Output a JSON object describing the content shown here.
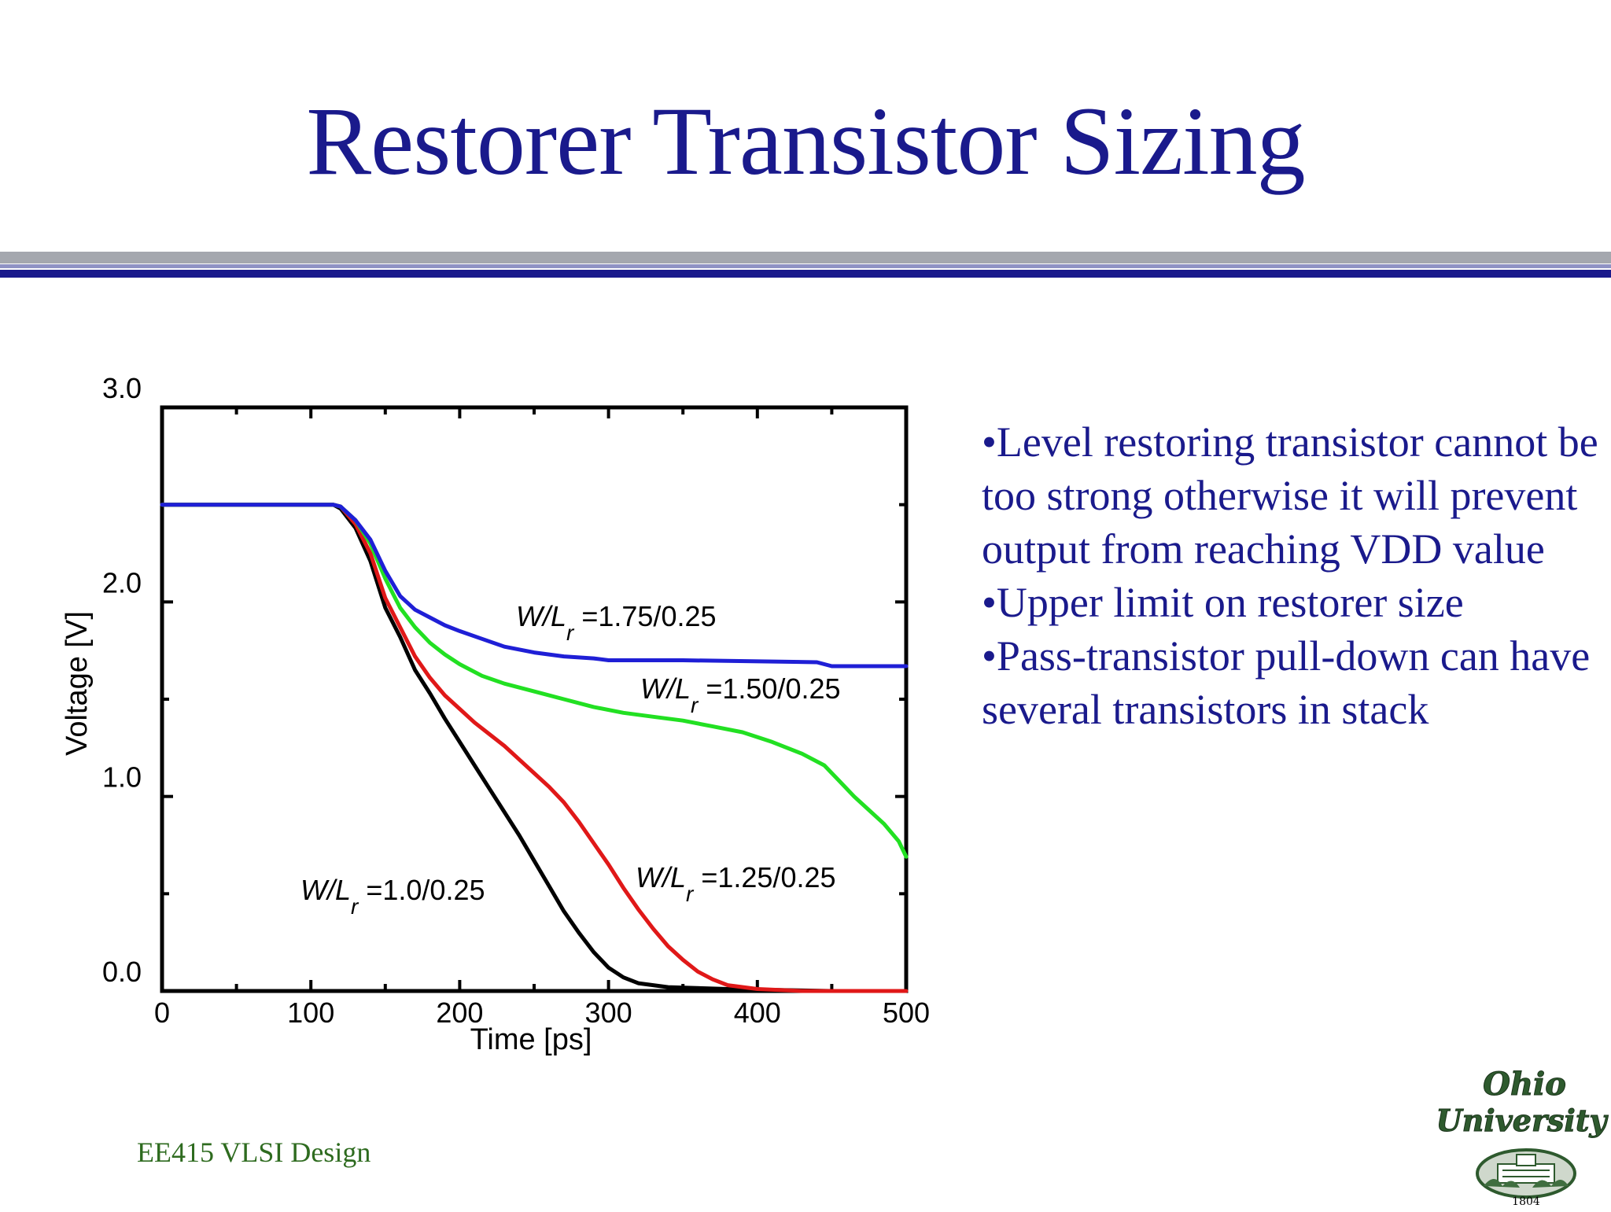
{
  "slide": {
    "title": "Restorer Transistor Sizing",
    "footer": "EE415 VLSI Design"
  },
  "bullets": [
    "•Level restoring transistor cannot be too strong otherwise it will prevent output from reaching VDD value",
    "•Upper limit on restorer size",
    "•Pass-transistor pull-down can have several transistors in stack"
  ],
  "logo": {
    "line1": "Ohio",
    "line2": "University",
    "year": "1804",
    "icon": "ohio-university-seal"
  },
  "colors": {
    "title": "#1a1a8c",
    "footer": "#2e6b1f"
  },
  "chart_data": {
    "type": "line",
    "xlabel": "Time [ps]",
    "ylabel": "Voltage  [V]",
    "xlim": [
      0,
      500
    ],
    "ylim": [
      0,
      3.0
    ],
    "x_ticks": [
      "0",
      "100",
      "200",
      "300",
      "400",
      "500"
    ],
    "y_ticks": [
      "0.0",
      "1.0",
      "2.0",
      "3.0"
    ],
    "y_tick_values": [
      0,
      1,
      2,
      3
    ],
    "grid": false,
    "series": [
      {
        "name": "W/Lr =1.75/0.25",
        "label_parts": [
          "W/L",
          "r",
          " =1.75/0.25"
        ],
        "color": "#1f1fd6",
        "points": [
          [
            0,
            2.5
          ],
          [
            115,
            2.5
          ],
          [
            120,
            2.49
          ],
          [
            130,
            2.42
          ],
          [
            140,
            2.32
          ],
          [
            150,
            2.16
          ],
          [
            160,
            2.03
          ],
          [
            170,
            1.96
          ],
          [
            180,
            1.92
          ],
          [
            190,
            1.88
          ],
          [
            200,
            1.85
          ],
          [
            215,
            1.81
          ],
          [
            230,
            1.77
          ],
          [
            250,
            1.74
          ],
          [
            270,
            1.72
          ],
          [
            290,
            1.71
          ],
          [
            300,
            1.7
          ],
          [
            350,
            1.7
          ],
          [
            440,
            1.69
          ],
          [
            450,
            1.67
          ],
          [
            500,
            1.67
          ]
        ]
      },
      {
        "name": "W/Lr =1.50/0.25",
        "label_parts": [
          "W/L",
          "r",
          " =1.50/0.25"
        ],
        "color": "#22e022",
        "points": [
          [
            0,
            2.5
          ],
          [
            115,
            2.5
          ],
          [
            120,
            2.49
          ],
          [
            130,
            2.42
          ],
          [
            140,
            2.3
          ],
          [
            150,
            2.12
          ],
          [
            160,
            1.97
          ],
          [
            170,
            1.87
          ],
          [
            180,
            1.79
          ],
          [
            190,
            1.73
          ],
          [
            200,
            1.68
          ],
          [
            215,
            1.62
          ],
          [
            230,
            1.58
          ],
          [
            250,
            1.54
          ],
          [
            270,
            1.5
          ],
          [
            290,
            1.46
          ],
          [
            310,
            1.43
          ],
          [
            330,
            1.41
          ],
          [
            350,
            1.39
          ],
          [
            370,
            1.36
          ],
          [
            390,
            1.33
          ],
          [
            410,
            1.28
          ],
          [
            430,
            1.22
          ],
          [
            445,
            1.16
          ],
          [
            455,
            1.08
          ],
          [
            465,
            1.0
          ],
          [
            475,
            0.93
          ],
          [
            485,
            0.86
          ],
          [
            495,
            0.77
          ],
          [
            500,
            0.69
          ]
        ]
      },
      {
        "name": "W/Lr =1.25/0.25",
        "label_parts": [
          "W/L",
          "r",
          " =1.25/0.25"
        ],
        "color": "#e01818",
        "points": [
          [
            0,
            2.5
          ],
          [
            115,
            2.5
          ],
          [
            120,
            2.49
          ],
          [
            130,
            2.4
          ],
          [
            140,
            2.25
          ],
          [
            150,
            2.02
          ],
          [
            160,
            1.87
          ],
          [
            170,
            1.72
          ],
          [
            180,
            1.61
          ],
          [
            190,
            1.52
          ],
          [
            200,
            1.45
          ],
          [
            210,
            1.38
          ],
          [
            220,
            1.32
          ],
          [
            230,
            1.26
          ],
          [
            240,
            1.19
          ],
          [
            250,
            1.12
          ],
          [
            260,
            1.05
          ],
          [
            270,
            0.97
          ],
          [
            280,
            0.87
          ],
          [
            290,
            0.76
          ],
          [
            300,
            0.65
          ],
          [
            310,
            0.53
          ],
          [
            320,
            0.42
          ],
          [
            330,
            0.32
          ],
          [
            340,
            0.23
          ],
          [
            350,
            0.16
          ],
          [
            360,
            0.1
          ],
          [
            370,
            0.06
          ],
          [
            380,
            0.03
          ],
          [
            400,
            0.01
          ],
          [
            430,
            0.0
          ],
          [
            500,
            0.0
          ]
        ]
      },
      {
        "name": "W/Lr =1.0/0.25",
        "label_parts": [
          "W/L",
          "r",
          " =1.0/0.25"
        ],
        "color": "#000000",
        "points": [
          [
            0,
            2.5
          ],
          [
            115,
            2.5
          ],
          [
            120,
            2.48
          ],
          [
            130,
            2.38
          ],
          [
            140,
            2.21
          ],
          [
            150,
            1.97
          ],
          [
            160,
            1.82
          ],
          [
            170,
            1.65
          ],
          [
            180,
            1.53
          ],
          [
            190,
            1.4
          ],
          [
            200,
            1.28
          ],
          [
            210,
            1.16
          ],
          [
            220,
            1.04
          ],
          [
            230,
            0.92
          ],
          [
            240,
            0.8
          ],
          [
            250,
            0.67
          ],
          [
            260,
            0.54
          ],
          [
            270,
            0.41
          ],
          [
            280,
            0.3
          ],
          [
            290,
            0.2
          ],
          [
            300,
            0.12
          ],
          [
            310,
            0.07
          ],
          [
            320,
            0.04
          ],
          [
            340,
            0.02
          ],
          [
            380,
            0.01
          ],
          [
            450,
            0.0
          ]
        ]
      }
    ]
  }
}
